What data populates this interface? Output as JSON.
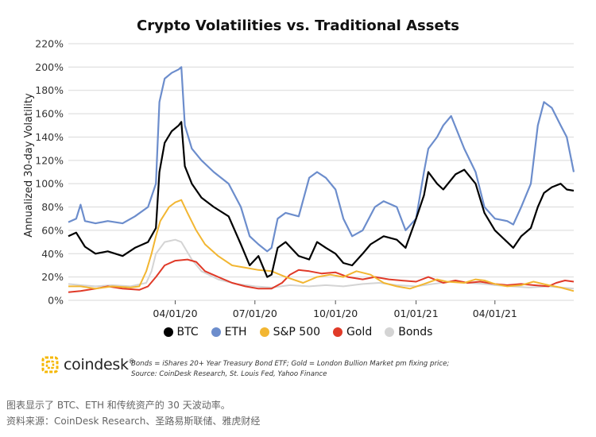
{
  "chart_data": {
    "type": "line",
    "title": "Crypto Volatilities vs. Traditional Assets",
    "xlabel": "",
    "ylabel": "Annualized 30-day Volatility",
    "ylim": [
      0,
      220
    ],
    "yticks": [
      "0%",
      "20%",
      "40%",
      "60%",
      "80%",
      "100%",
      "120%",
      "140%",
      "160%",
      "180%",
      "200%",
      "220%"
    ],
    "xlim": [
      "2019-12-01",
      "2021-06-30"
    ],
    "xticks": [
      {
        "date": "2020-04-01",
        "label": "04/01/20"
      },
      {
        "date": "2020-07-01",
        "label": "07/01/20"
      },
      {
        "date": "2020-10-01",
        "label": "10/01/20"
      },
      {
        "date": "2021-01-01",
        "label": "01/01/21"
      },
      {
        "date": "2021-04-01",
        "label": "04/01/21"
      }
    ],
    "legend_position": "bottom",
    "grid": "horizontal",
    "series": [
      {
        "name": "BTC",
        "color": "#000000",
        "points": [
          [
            "2019-12-01",
            55
          ],
          [
            "2019-12-10",
            58
          ],
          [
            "2019-12-20",
            46
          ],
          [
            "2020-01-01",
            40
          ],
          [
            "2020-01-15",
            42
          ],
          [
            "2020-02-01",
            38
          ],
          [
            "2020-02-15",
            45
          ],
          [
            "2020-03-01",
            50
          ],
          [
            "2020-03-10",
            62
          ],
          [
            "2020-03-14",
            110
          ],
          [
            "2020-03-20",
            135
          ],
          [
            "2020-03-28",
            145
          ],
          [
            "2020-04-05",
            150
          ],
          [
            "2020-04-08",
            153
          ],
          [
            "2020-04-12",
            115
          ],
          [
            "2020-04-20",
            100
          ],
          [
            "2020-05-01",
            88
          ],
          [
            "2020-05-15",
            80
          ],
          [
            "2020-06-01",
            72
          ],
          [
            "2020-06-15",
            48
          ],
          [
            "2020-06-25",
            30
          ],
          [
            "2020-07-05",
            38
          ],
          [
            "2020-07-15",
            20
          ],
          [
            "2020-07-20",
            22
          ],
          [
            "2020-07-27",
            45
          ],
          [
            "2020-08-05",
            50
          ],
          [
            "2020-08-20",
            38
          ],
          [
            "2020-09-01",
            35
          ],
          [
            "2020-09-10",
            50
          ],
          [
            "2020-09-20",
            45
          ],
          [
            "2020-10-01",
            40
          ],
          [
            "2020-10-10",
            32
          ],
          [
            "2020-10-20",
            30
          ],
          [
            "2020-11-01",
            40
          ],
          [
            "2020-11-10",
            48
          ],
          [
            "2020-11-25",
            55
          ],
          [
            "2020-12-10",
            52
          ],
          [
            "2020-12-20",
            45
          ],
          [
            "2021-01-01",
            70
          ],
          [
            "2021-01-10",
            90
          ],
          [
            "2021-01-15",
            110
          ],
          [
            "2021-01-25",
            100
          ],
          [
            "2021-02-01",
            95
          ],
          [
            "2021-02-15",
            108
          ],
          [
            "2021-02-25",
            112
          ],
          [
            "2021-03-10",
            100
          ],
          [
            "2021-03-20",
            75
          ],
          [
            "2021-04-01",
            60
          ],
          [
            "2021-04-15",
            50
          ],
          [
            "2021-04-22",
            45
          ],
          [
            "2021-05-01",
            55
          ],
          [
            "2021-05-12",
            62
          ],
          [
            "2021-05-20",
            80
          ],
          [
            "2021-05-27",
            92
          ],
          [
            "2021-06-05",
            97
          ],
          [
            "2021-06-15",
            100
          ],
          [
            "2021-06-22",
            95
          ],
          [
            "2021-06-30",
            94
          ]
        ]
      },
      {
        "name": "ETH",
        "color": "#6c8dcc",
        "points": [
          [
            "2019-12-01",
            67
          ],
          [
            "2019-12-10",
            70
          ],
          [
            "2019-12-15",
            82
          ],
          [
            "2019-12-20",
            68
          ],
          [
            "2020-01-01",
            66
          ],
          [
            "2020-01-15",
            68
          ],
          [
            "2020-02-01",
            66
          ],
          [
            "2020-02-15",
            72
          ],
          [
            "2020-03-01",
            80
          ],
          [
            "2020-03-10",
            100
          ],
          [
            "2020-03-14",
            170
          ],
          [
            "2020-03-20",
            190
          ],
          [
            "2020-03-28",
            195
          ],
          [
            "2020-04-05",
            198
          ],
          [
            "2020-04-08",
            200
          ],
          [
            "2020-04-12",
            150
          ],
          [
            "2020-04-20",
            130
          ],
          [
            "2020-05-01",
            120
          ],
          [
            "2020-05-15",
            110
          ],
          [
            "2020-06-01",
            100
          ],
          [
            "2020-06-15",
            80
          ],
          [
            "2020-06-25",
            55
          ],
          [
            "2020-07-05",
            48
          ],
          [
            "2020-07-15",
            42
          ],
          [
            "2020-07-20",
            45
          ],
          [
            "2020-07-27",
            70
          ],
          [
            "2020-08-05",
            75
          ],
          [
            "2020-08-20",
            72
          ],
          [
            "2020-09-01",
            105
          ],
          [
            "2020-09-10",
            110
          ],
          [
            "2020-09-20",
            105
          ],
          [
            "2020-10-01",
            95
          ],
          [
            "2020-10-10",
            70
          ],
          [
            "2020-10-20",
            55
          ],
          [
            "2020-11-01",
            60
          ],
          [
            "2020-11-15",
            80
          ],
          [
            "2020-11-25",
            85
          ],
          [
            "2020-12-10",
            80
          ],
          [
            "2020-12-20",
            60
          ],
          [
            "2021-01-01",
            70
          ],
          [
            "2021-01-10",
            110
          ],
          [
            "2021-01-15",
            130
          ],
          [
            "2021-01-25",
            140
          ],
          [
            "2021-02-01",
            150
          ],
          [
            "2021-02-10",
            158
          ],
          [
            "2021-02-25",
            130
          ],
          [
            "2021-03-10",
            110
          ],
          [
            "2021-03-20",
            80
          ],
          [
            "2021-04-01",
            70
          ],
          [
            "2021-04-15",
            68
          ],
          [
            "2021-04-22",
            65
          ],
          [
            "2021-05-01",
            80
          ],
          [
            "2021-05-12",
            100
          ],
          [
            "2021-05-20",
            150
          ],
          [
            "2021-05-27",
            170
          ],
          [
            "2021-06-05",
            165
          ],
          [
            "2021-06-15",
            150
          ],
          [
            "2021-06-22",
            140
          ],
          [
            "2021-06-30",
            110
          ]
        ]
      },
      {
        "name": "S&P 500",
        "color": "#f2b632",
        "points": [
          [
            "2019-12-01",
            12
          ],
          [
            "2019-12-15",
            12
          ],
          [
            "2020-01-01",
            10
          ],
          [
            "2020-01-20",
            12
          ],
          [
            "2020-02-10",
            11
          ],
          [
            "2020-02-20",
            12
          ],
          [
            "2020-02-28",
            25
          ],
          [
            "2020-03-05",
            40
          ],
          [
            "2020-03-10",
            55
          ],
          [
            "2020-03-15",
            68
          ],
          [
            "2020-03-25",
            80
          ],
          [
            "2020-04-01",
            84
          ],
          [
            "2020-04-08",
            86
          ],
          [
            "2020-04-15",
            75
          ],
          [
            "2020-04-25",
            60
          ],
          [
            "2020-05-05",
            48
          ],
          [
            "2020-05-20",
            38
          ],
          [
            "2020-06-05",
            30
          ],
          [
            "2020-06-20",
            28
          ],
          [
            "2020-07-05",
            26
          ],
          [
            "2020-07-20",
            25
          ],
          [
            "2020-08-05",
            20
          ],
          [
            "2020-08-25",
            15
          ],
          [
            "2020-09-10",
            20
          ],
          [
            "2020-09-25",
            22
          ],
          [
            "2020-10-10",
            20
          ],
          [
            "2020-10-25",
            25
          ],
          [
            "2020-11-10",
            22
          ],
          [
            "2020-11-25",
            15
          ],
          [
            "2020-12-10",
            12
          ],
          [
            "2020-12-25",
            10
          ],
          [
            "2021-01-10",
            14
          ],
          [
            "2021-01-25",
            18
          ],
          [
            "2021-02-05",
            16
          ],
          [
            "2021-02-25",
            15
          ],
          [
            "2021-03-10",
            18
          ],
          [
            "2021-03-20",
            17
          ],
          [
            "2021-04-01",
            14
          ],
          [
            "2021-04-15",
            12
          ],
          [
            "2021-05-01",
            13
          ],
          [
            "2021-05-15",
            16
          ],
          [
            "2021-06-01",
            13
          ],
          [
            "2021-06-15",
            11
          ],
          [
            "2021-06-30",
            8
          ]
        ]
      },
      {
        "name": "Gold",
        "color": "#e03a28",
        "points": [
          [
            "2019-12-01",
            7
          ],
          [
            "2019-12-15",
            8
          ],
          [
            "2020-01-01",
            10
          ],
          [
            "2020-01-15",
            12
          ],
          [
            "2020-02-01",
            10
          ],
          [
            "2020-02-20",
            9
          ],
          [
            "2020-03-01",
            12
          ],
          [
            "2020-03-10",
            20
          ],
          [
            "2020-03-20",
            30
          ],
          [
            "2020-04-01",
            34
          ],
          [
            "2020-04-15",
            35
          ],
          [
            "2020-04-25",
            33
          ],
          [
            "2020-05-05",
            25
          ],
          [
            "2020-05-20",
            20
          ],
          [
            "2020-06-05",
            15
          ],
          [
            "2020-06-20",
            12
          ],
          [
            "2020-07-05",
            10
          ],
          [
            "2020-07-20",
            10
          ],
          [
            "2020-08-01",
            15
          ],
          [
            "2020-08-10",
            22
          ],
          [
            "2020-08-20",
            26
          ],
          [
            "2020-09-01",
            25
          ],
          [
            "2020-09-15",
            23
          ],
          [
            "2020-10-01",
            24
          ],
          [
            "2020-10-15",
            20
          ],
          [
            "2020-11-01",
            18
          ],
          [
            "2020-11-15",
            20
          ],
          [
            "2020-12-01",
            18
          ],
          [
            "2020-12-15",
            17
          ],
          [
            "2021-01-01",
            16
          ],
          [
            "2021-01-15",
            20
          ],
          [
            "2021-02-01",
            15
          ],
          [
            "2021-02-15",
            17
          ],
          [
            "2021-03-01",
            15
          ],
          [
            "2021-03-15",
            16
          ],
          [
            "2021-04-01",
            14
          ],
          [
            "2021-04-15",
            13
          ],
          [
            "2021-05-01",
            14
          ],
          [
            "2021-05-15",
            13
          ],
          [
            "2021-06-01",
            12
          ],
          [
            "2021-06-10",
            15
          ],
          [
            "2021-06-20",
            17
          ],
          [
            "2021-06-30",
            16
          ]
        ]
      },
      {
        "name": "Bonds",
        "color": "#d4d4d4",
        "points": [
          [
            "2019-12-01",
            14
          ],
          [
            "2019-12-15",
            13
          ],
          [
            "2020-01-01",
            12
          ],
          [
            "2020-01-20",
            13
          ],
          [
            "2020-02-10",
            12
          ],
          [
            "2020-02-28",
            15
          ],
          [
            "2020-03-05",
            25
          ],
          [
            "2020-03-10",
            40
          ],
          [
            "2020-03-20",
            50
          ],
          [
            "2020-04-01",
            52
          ],
          [
            "2020-04-08",
            50
          ],
          [
            "2020-04-20",
            35
          ],
          [
            "2020-05-01",
            25
          ],
          [
            "2020-05-20",
            18
          ],
          [
            "2020-06-10",
            14
          ],
          [
            "2020-07-01",
            12
          ],
          [
            "2020-07-20",
            11
          ],
          [
            "2020-08-10",
            13
          ],
          [
            "2020-09-01",
            12
          ],
          [
            "2020-09-20",
            13
          ],
          [
            "2020-10-10",
            12
          ],
          [
            "2020-11-01",
            14
          ],
          [
            "2020-11-20",
            15
          ],
          [
            "2020-12-10",
            13
          ],
          [
            "2021-01-01",
            12
          ],
          [
            "2021-01-20",
            14
          ],
          [
            "2021-02-10",
            16
          ],
          [
            "2021-03-01",
            15
          ],
          [
            "2021-03-20",
            14
          ],
          [
            "2021-04-01",
            13
          ],
          [
            "2021-04-20",
            12
          ],
          [
            "2021-05-10",
            11
          ],
          [
            "2021-06-01",
            12
          ],
          [
            "2021-06-30",
            10
          ]
        ]
      }
    ]
  },
  "logo": {
    "text": "coindesk",
    "mark": "®",
    "brand_color": "#f5b700"
  },
  "notes": {
    "line1": "Bonds = iShares 20+ Year Treasury Bond ETF;   Gold = London Bullion Market pm fixing price;",
    "line2": "Source: CoinDesk Research, St. Louis Fed, Yahoo Finance"
  },
  "caption": {
    "line1": "图表显示了 BTC、ETH 和传统资产的 30 天波动率。",
    "line2": "资料来源：CoinDesk Research、圣路易斯联储、雅虎财经"
  }
}
